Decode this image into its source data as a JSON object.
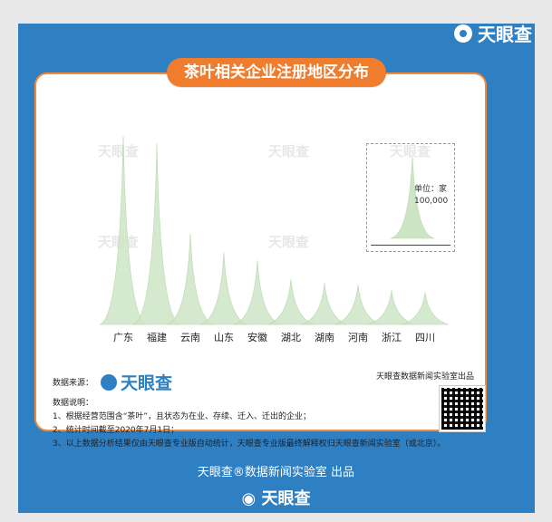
{
  "header": {
    "brand": "天眼查"
  },
  "title": "茶叶相关企业注册地区分布",
  "chart_data": {
    "type": "area",
    "categories": [
      "广东",
      "福建",
      "云南",
      "山东",
      "安徽",
      "湖北",
      "湖南",
      "河南",
      "浙江",
      "四川"
    ],
    "series": [
      {
        "values": [
          100,
          96,
          48,
          38,
          34,
          24,
          22,
          21,
          18,
          17
        ]
      }
    ],
    "unit_label": "单位：家",
    "unit_value": "100,000",
    "fill_color": "#cde5c4",
    "edge_color": "#b7d7ad"
  },
  "watermark_text": "天眼查",
  "notes": {
    "source_label": "数据来源：",
    "source_brand": "天眼查",
    "desc_label": "数据说明：",
    "lines": [
      "1、根据经营范围含“茶叶”，且状态为在业、存续、迁入、迁出的企业；",
      "2、统计时间截至2020年7月1日；",
      "3、以上数据分析结果仅由天眼查专业版自动统计，天眼查专业版最终解释权归天眼查新闻实验室（或北京）。"
    ]
  },
  "qr_label": "天眼查数据新闻实验室出品",
  "footer": {
    "text": "天眼查®数据新闻实验室 出品",
    "brand": "天眼查"
  }
}
